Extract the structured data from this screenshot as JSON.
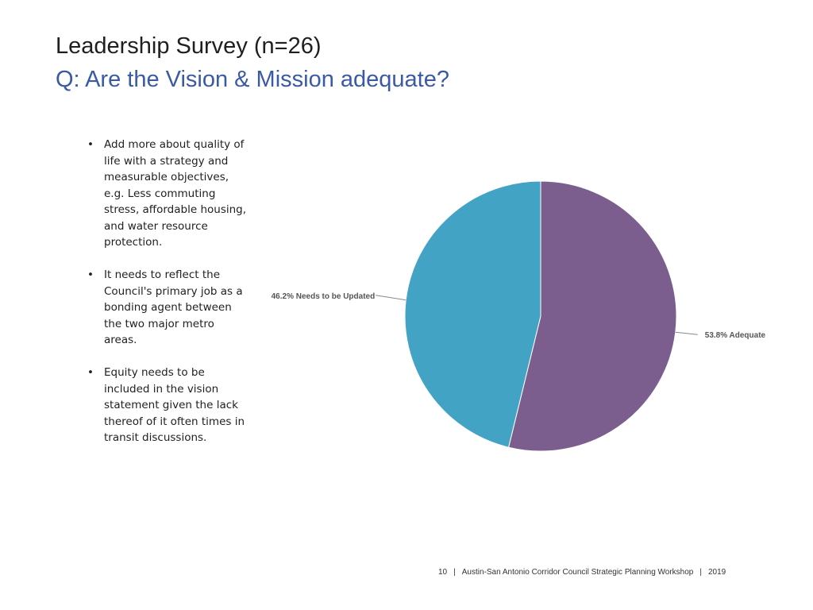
{
  "slide": {
    "title": "Leadership Survey (n=26)",
    "subtitle": "Q: Are the Vision & Mission adequate?"
  },
  "bullets": [
    "Add more about quality of life with a strategy and measurable objectives, e.g. Less commuting stress, affordable housing, and water resource protection.",
    "It needs to reflect the Council's primary job as a bonding agent between the two major metro areas.",
    "Equity needs to be included in the vision statement given the lack thereof of it often times in transit discussions."
  ],
  "bullet_glyph": "•",
  "chart_data": {
    "type": "pie",
    "title": "",
    "slices": [
      {
        "label": "53.8% Adequate",
        "value": 53.8,
        "color": "#7b5e8e"
      },
      {
        "label": "46.2% Needs to be Updated",
        "value": 46.2,
        "color": "#42a3c4"
      }
    ]
  },
  "footer": {
    "page": "10",
    "separator": "|",
    "text": "Austin-San Antonio Corridor Council Strategic Planning Workshop",
    "year": "2019"
  }
}
